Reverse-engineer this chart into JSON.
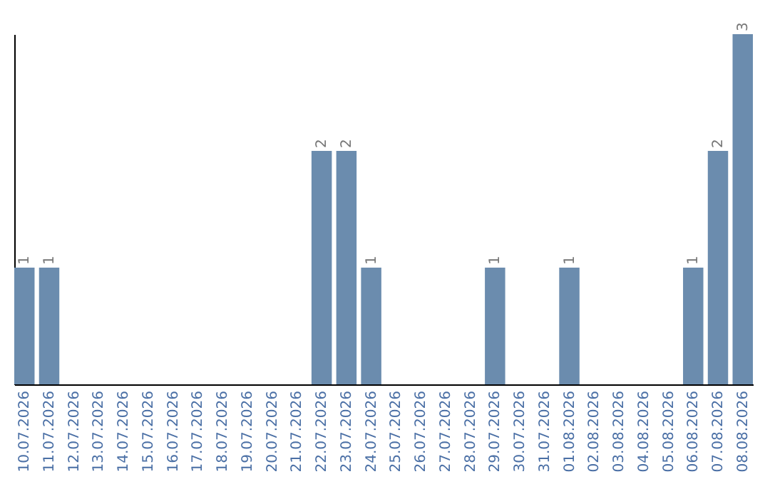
{
  "chart_data": {
    "type": "bar",
    "categories": [
      "10.07.2026",
      "11.07.2026",
      "12.07.2026",
      "13.07.2026",
      "14.07.2026",
      "15.07.2026",
      "16.07.2026",
      "17.07.2026",
      "18.07.2026",
      "19.07.2026",
      "20.07.2026",
      "21.07.2026",
      "22.07.2026",
      "23.07.2026",
      "24.07.2026",
      "25.07.2026",
      "26.07.2026",
      "27.07.2026",
      "28.07.2026",
      "29.07.2026",
      "30.07.2026",
      "31.07.2026",
      "01.08.2026",
      "02.08.2026",
      "03.08.2026",
      "04.08.2026",
      "05.08.2026",
      "06.08.2026",
      "07.08.2026",
      "08.08.2026"
    ],
    "values": [
      1,
      1,
      0,
      0,
      0,
      0,
      0,
      0,
      0,
      0,
      0,
      0,
      2,
      2,
      1,
      0,
      0,
      0,
      0,
      1,
      0,
      0,
      1,
      0,
      0,
      0,
      0,
      1,
      2,
      3
    ],
    "value_labels": [
      "1",
      "1",
      null,
      null,
      null,
      null,
      null,
      null,
      null,
      null,
      null,
      null,
      "2",
      "2",
      "1",
      null,
      null,
      null,
      null,
      "1",
      null,
      null,
      "1",
      null,
      null,
      null,
      null,
      "1",
      "2",
      "3"
    ],
    "color": "#6b8cae",
    "grid": false
  }
}
